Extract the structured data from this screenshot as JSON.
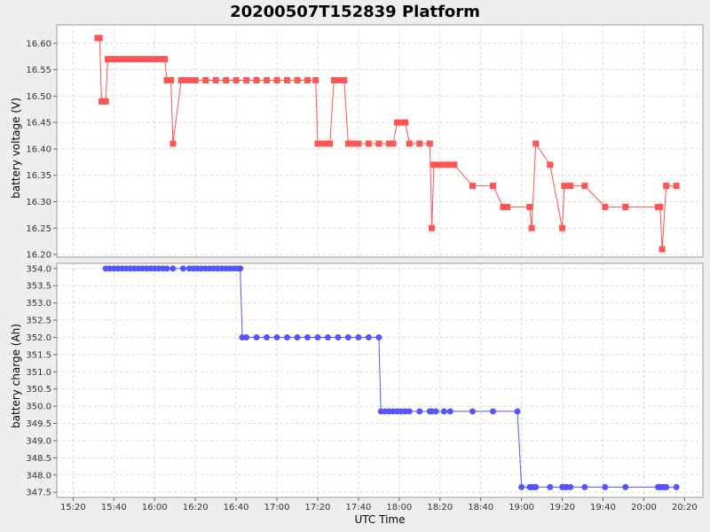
{
  "title": "20200507T152839 Platform",
  "x_axis_label": "UTC Time",
  "x_ticks": [
    "15:20",
    "15:40",
    "16:00",
    "16:20",
    "16:40",
    "17:00",
    "17:20",
    "17:40",
    "18:00",
    "18:20",
    "18:40",
    "19:00",
    "19:20",
    "19:40",
    "20:00",
    "20:20"
  ],
  "colors": {
    "voltage": "#ff5555",
    "charge": "#5555ff",
    "grid": "#d8d8d8"
  },
  "chart_data": [
    {
      "type": "line",
      "ylabel": "battery voltage (V)",
      "xlabel": "",
      "x_unit": "UTC time (HH:MM)",
      "ylim": [
        16.195,
        16.635
      ],
      "yticks": [
        "16.20",
        "16.25",
        "16.30",
        "16.35",
        "16.40",
        "16.45",
        "16.50",
        "16.55",
        "16.60"
      ],
      "grid": true,
      "series": [
        {
          "marker": "square",
          "x": [
            "15:32",
            "15:33",
            "15:34",
            "15:35",
            "15:36",
            "15:37",
            "15:38",
            "15:40",
            "15:42",
            "15:44",
            "15:46",
            "15:48",
            "15:50",
            "15:52",
            "15:54",
            "15:56",
            "15:58",
            "16:00",
            "16:02",
            "16:04",
            "16:05",
            "16:06",
            "16:08",
            "16:09",
            "16:13",
            "16:15",
            "16:17",
            "16:20",
            "16:25",
            "16:30",
            "16:35",
            "16:40",
            "16:45",
            "16:50",
            "16:55",
            "17:00",
            "17:05",
            "17:10",
            "17:15",
            "17:19",
            "17:20",
            "17:22",
            "17:24",
            "17:26",
            "17:28",
            "17:30",
            "17:33",
            "17:35",
            "17:37",
            "17:40",
            "17:45",
            "17:50",
            "17:55",
            "17:57",
            "17:59",
            "18:01",
            "18:03",
            "18:05",
            "18:10",
            "18:15",
            "18:16",
            "18:17",
            "18:19",
            "18:21",
            "18:24",
            "18:27",
            "18:36",
            "18:46",
            "18:51",
            "18:53",
            "19:04",
            "19:05",
            "19:07",
            "19:14",
            "19:20",
            "19:21",
            "19:24",
            "19:31",
            "19:41",
            "19:51",
            "20:07",
            "20:08",
            "20:09",
            "20:11",
            "20:16"
          ],
          "y": [
            16.61,
            16.61,
            16.49,
            16.49,
            16.49,
            16.57,
            16.57,
            16.57,
            16.57,
            16.57,
            16.57,
            16.57,
            16.57,
            16.57,
            16.57,
            16.57,
            16.57,
            16.57,
            16.57,
            16.57,
            16.57,
            16.53,
            16.53,
            16.41,
            16.53,
            16.53,
            16.53,
            16.53,
            16.53,
            16.53,
            16.53,
            16.53,
            16.53,
            16.53,
            16.53,
            16.53,
            16.53,
            16.53,
            16.53,
            16.53,
            16.41,
            16.41,
            16.41,
            16.41,
            16.53,
            16.53,
            16.53,
            16.41,
            16.41,
            16.41,
            16.41,
            16.41,
            16.41,
            16.41,
            16.45,
            16.45,
            16.45,
            16.41,
            16.41,
            16.41,
            16.25,
            16.37,
            16.37,
            16.37,
            16.37,
            16.37,
            16.33,
            16.33,
            16.29,
            16.29,
            16.29,
            16.25,
            16.41,
            16.37,
            16.25,
            16.33,
            16.33,
            16.33,
            16.29,
            16.29,
            16.29,
            16.29,
            16.21,
            16.33,
            16.33
          ]
        }
      ]
    },
    {
      "type": "line",
      "ylabel": "battery charge (Ah)",
      "xlabel": "UTC Time",
      "x_unit": "UTC time (HH:MM)",
      "ylim": [
        347.35,
        354.15
      ],
      "yticks": [
        "347.5",
        "348.0",
        "348.5",
        "349.0",
        "349.5",
        "350.0",
        "350.5",
        "351.0",
        "351.5",
        "352.0",
        "352.5",
        "353.0",
        "353.5",
        "354.0"
      ],
      "grid": true,
      "series": [
        {
          "marker": "circle",
          "x": [
            "15:36",
            "15:38",
            "15:40",
            "15:42",
            "15:44",
            "15:46",
            "15:48",
            "15:50",
            "15:52",
            "15:54",
            "15:56",
            "15:58",
            "16:00",
            "16:02",
            "16:04",
            "16:06",
            "16:09",
            "16:14",
            "16:17",
            "16:19",
            "16:21",
            "16:23",
            "16:25",
            "16:27",
            "16:29",
            "16:31",
            "16:33",
            "16:35",
            "16:37",
            "16:39",
            "16:41",
            "16:42",
            "16:43",
            "16:45",
            "16:50",
            "16:55",
            "17:00",
            "17:05",
            "17:10",
            "17:15",
            "17:20",
            "17:25",
            "17:30",
            "17:35",
            "17:40",
            "17:45",
            "17:50",
            "17:51",
            "17:53",
            "17:55",
            "17:57",
            "17:59",
            "18:01",
            "18:03",
            "18:05",
            "18:10",
            "18:15",
            "18:16",
            "18:18",
            "18:22",
            "18:25",
            "18:36",
            "18:46",
            "18:58",
            "19:00",
            "19:04",
            "19:05",
            "19:06",
            "19:07",
            "19:14",
            "19:20",
            "19:21",
            "19:22",
            "19:24",
            "19:31",
            "19:41",
            "19:51",
            "20:07",
            "20:08",
            "20:09",
            "20:10",
            "20:11",
            "20:16"
          ],
          "y": [
            354.0,
            354.0,
            354.0,
            354.0,
            354.0,
            354.0,
            354.0,
            354.0,
            354.0,
            354.0,
            354.0,
            354.0,
            354.0,
            354.0,
            354.0,
            354.0,
            354.0,
            354.0,
            354.0,
            354.0,
            354.0,
            354.0,
            354.0,
            354.0,
            354.0,
            354.0,
            354.0,
            354.0,
            354.0,
            354.0,
            354.0,
            354.0,
            352.0,
            352.0,
            352.0,
            352.0,
            352.0,
            352.0,
            352.0,
            352.0,
            352.0,
            352.0,
            352.0,
            352.0,
            352.0,
            352.0,
            352.0,
            349.85,
            349.85,
            349.85,
            349.85,
            349.85,
            349.85,
            349.85,
            349.85,
            349.85,
            349.85,
            349.85,
            349.85,
            349.85,
            349.85,
            349.85,
            349.85,
            349.85,
            347.65,
            347.65,
            347.65,
            347.65,
            347.65,
            347.65,
            347.65,
            347.65,
            347.65,
            347.65,
            347.65,
            347.65,
            347.65,
            347.65,
            347.65,
            347.65,
            347.65,
            347.65,
            347.65
          ]
        }
      ]
    }
  ]
}
